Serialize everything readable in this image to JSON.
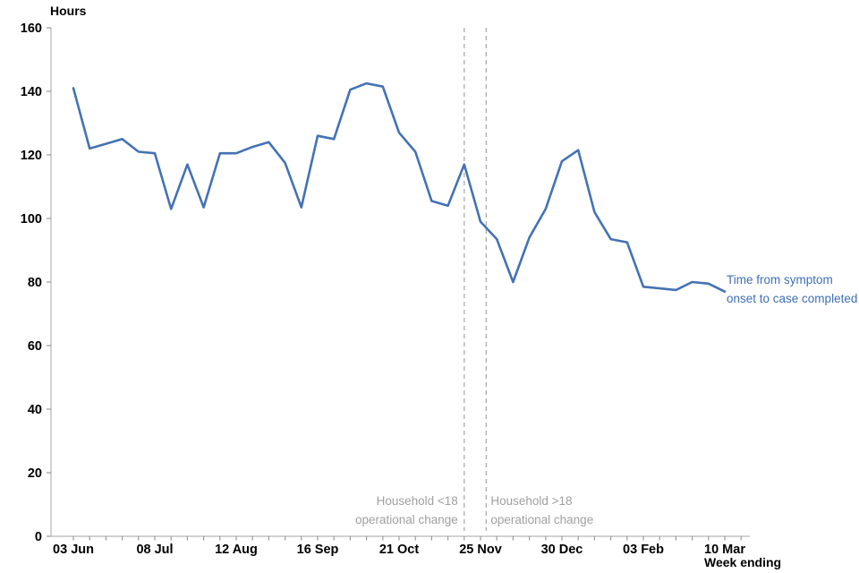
{
  "chart_data": {
    "type": "line",
    "title": "",
    "ylabel": "Hours",
    "xlabel": "Week ending",
    "ylim": [
      0,
      160
    ],
    "y_ticks": [
      0,
      20,
      40,
      60,
      80,
      100,
      120,
      140,
      160
    ],
    "grid": false,
    "legend_position": "inline-right-of-line-end",
    "categories": [
      "03 Jun",
      "10 Jun",
      "17 Jun",
      "24 Jun",
      "01 Jul",
      "08 Jul",
      "15 Jul",
      "22 Jul",
      "29 Jul",
      "05 Aug",
      "12 Aug",
      "19 Aug",
      "26 Aug",
      "02 Sep",
      "09 Sep",
      "16 Sep",
      "23 Sep",
      "30 Sep",
      "07 Oct",
      "14 Oct",
      "21 Oct",
      "28 Oct",
      "04 Nov",
      "11 Nov",
      "18 Nov",
      "25 Nov",
      "02 Dec",
      "09 Dec",
      "16 Dec",
      "23 Dec",
      "30 Dec",
      "06 Jan",
      "13 Jan",
      "20 Jan",
      "27 Jan",
      "03 Feb",
      "10 Feb",
      "17 Feb",
      "24 Feb",
      "03 Mar",
      "10 Mar"
    ],
    "x_tick_labels": [
      "03 Jun",
      "08 Jul",
      "12 Aug",
      "16 Sep",
      "21 Oct",
      "25 Nov",
      "30 Dec",
      "03 Feb",
      "10 Mar"
    ],
    "series": [
      {
        "name": "Time from symptom onset to case completed",
        "color": "#4472b4",
        "values": [
          141,
          122,
          123.5,
          125,
          121,
          120.5,
          103,
          117,
          103.5,
          120.5,
          120.5,
          122.5,
          124,
          117.5,
          103.5,
          126,
          125,
          140.5,
          142.5,
          141.5,
          127,
          121,
          105.5,
          104,
          117,
          99,
          93.5,
          80,
          94,
          103,
          118,
          121.5,
          102,
          93.5,
          92.5,
          78.5,
          78,
          77.5,
          80,
          79.5,
          77
        ]
      }
    ],
    "series_label": {
      "line1": "Time from symptom",
      "line2": "onset to case completed"
    },
    "annotations": [
      {
        "line1": "Household <18",
        "line2": "operational change",
        "week_index": 24,
        "side": "left-of-line"
      },
      {
        "line1": "Household >18",
        "line2": "operational change",
        "week_index": 25.35,
        "side": "right-of-line"
      }
    ],
    "colors": {
      "line": "#4472b4",
      "series_label_text": "#3e6fb3",
      "annotation_text": "#a0a0a0",
      "dashed_line": "#ababab",
      "axis_line": "#c4c4c4",
      "tick_mark": "#9a9a9a",
      "tick_text": "#000000"
    }
  }
}
